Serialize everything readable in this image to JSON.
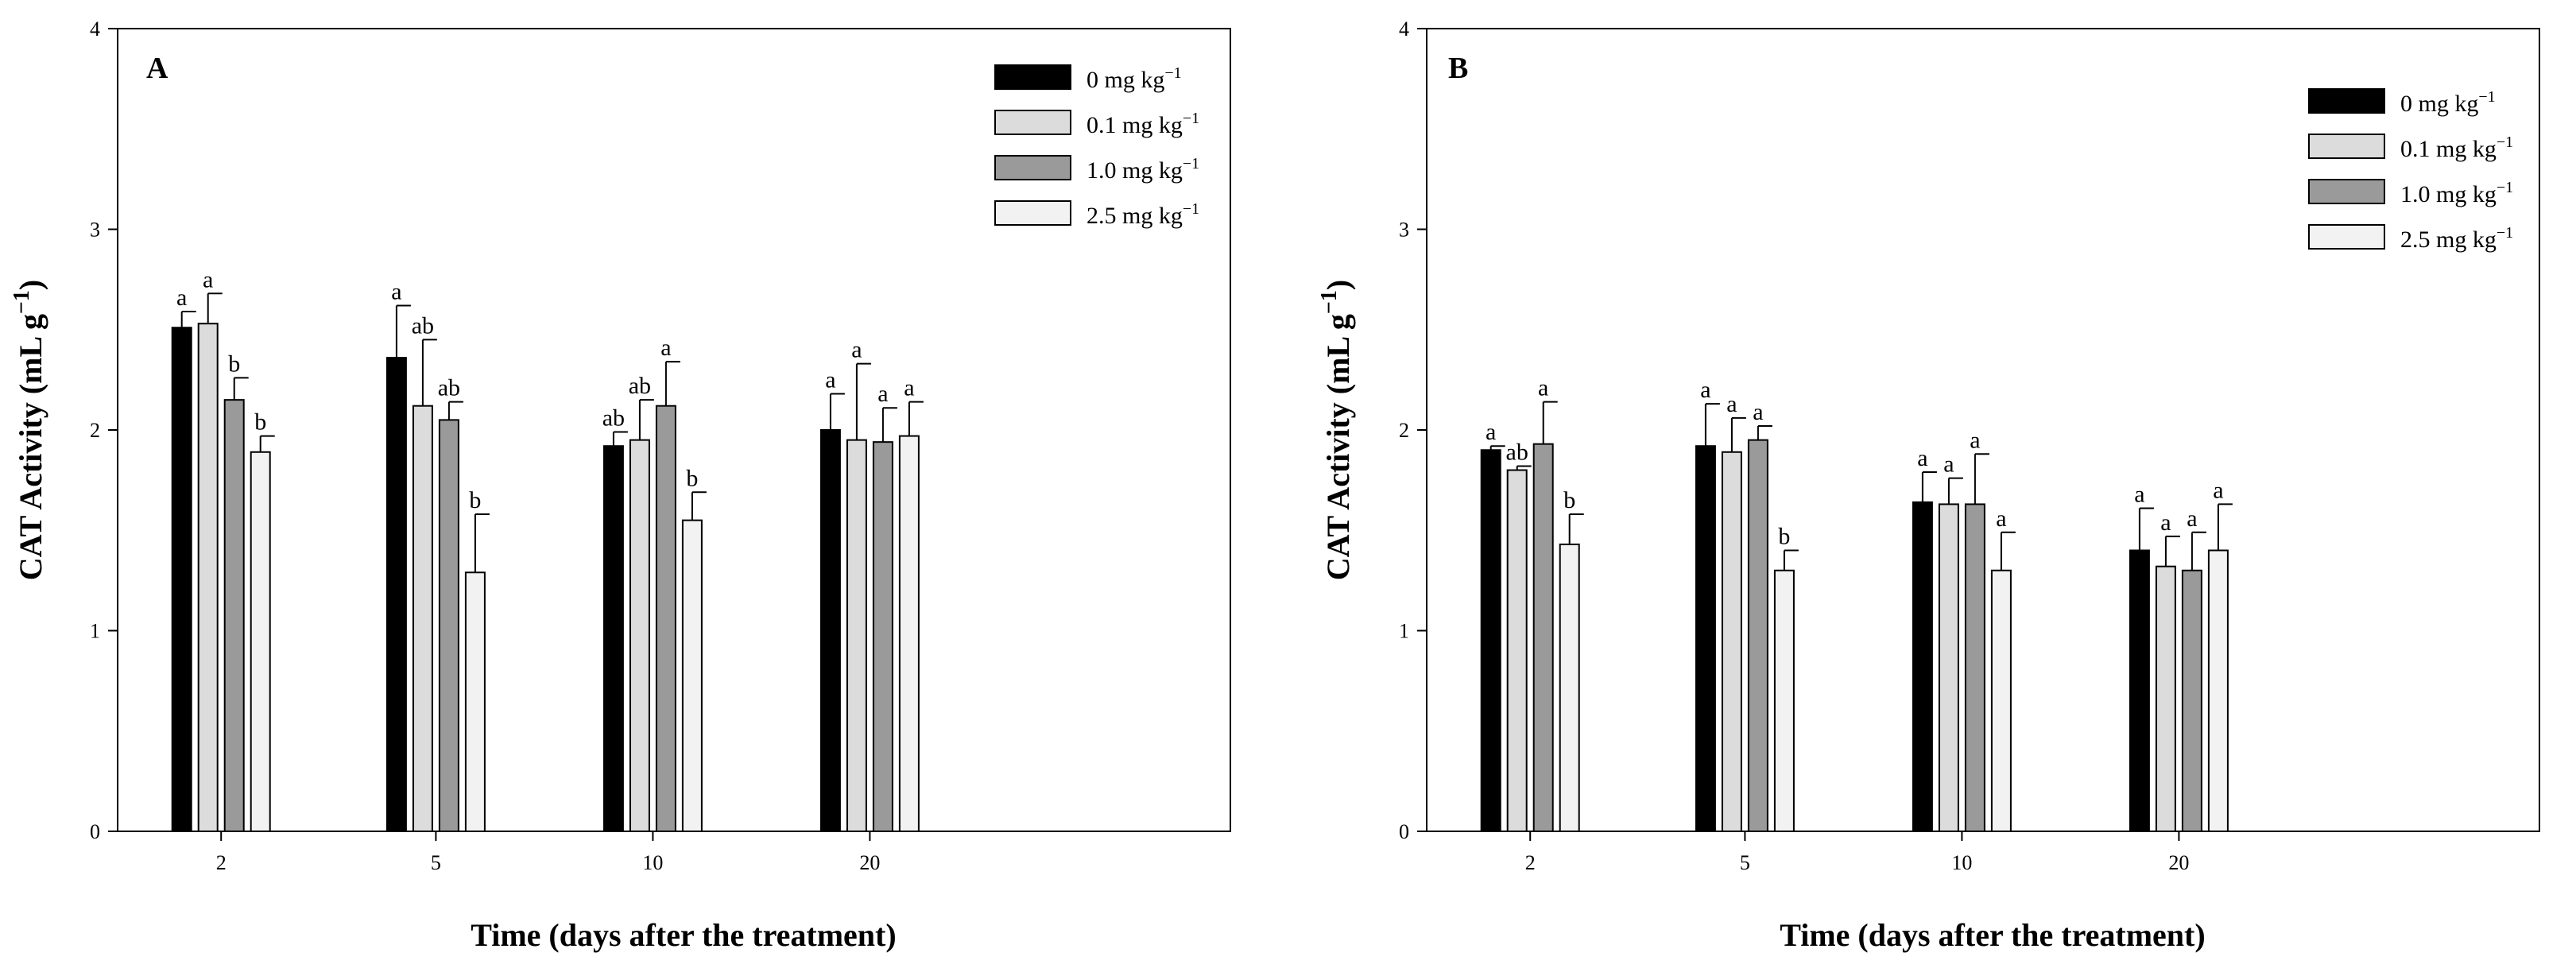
{
  "chart_data": [
    {
      "type": "bar",
      "panel_label": "A",
      "xlabel": "Time (days after the treatment)",
      "ylabel": "CAT Activity (mL g",
      "ylabel_sup": "−1",
      "ylabel_end": ")",
      "ylim": [
        0,
        4
      ],
      "yticks": [
        "0",
        "1",
        "2",
        "3",
        "4"
      ],
      "categories": [
        "2",
        "5",
        "10",
        "20"
      ],
      "legend_position": "top-right",
      "series": [
        {
          "name": "0 mg kg",
          "name_sup": "−1",
          "color": "#000000",
          "values": [
            2.51,
            2.36,
            1.92,
            2.0
          ],
          "errors": [
            0.08,
            0.26,
            0.07,
            0.18
          ],
          "letters": [
            "a",
            "a",
            "ab",
            "a"
          ]
        },
        {
          "name": "0.1 mg kg",
          "name_sup": "−1",
          "color": "#dcdcdc",
          "values": [
            2.53,
            2.12,
            1.95,
            1.95
          ],
          "errors": [
            0.15,
            0.33,
            0.2,
            0.38
          ],
          "letters": [
            "a",
            "ab",
            "ab",
            "a"
          ]
        },
        {
          "name": "1.0 mg kg",
          "name_sup": "−1",
          "color": "#9a9a9a",
          "values": [
            2.15,
            2.05,
            2.12,
            1.94
          ],
          "errors": [
            0.11,
            0.09,
            0.22,
            0.17
          ],
          "letters": [
            "b",
            "ab",
            "a",
            "a"
          ]
        },
        {
          "name": "2.5 mg kg",
          "name_sup": "−1",
          "color": "#f2f2f2",
          "values": [
            1.89,
            1.29,
            1.55,
            1.97
          ],
          "errors": [
            0.08,
            0.29,
            0.14,
            0.17
          ],
          "letters": [
            "b",
            "b",
            "b",
            "a"
          ]
        }
      ]
    },
    {
      "type": "bar",
      "panel_label": "B",
      "xlabel": "Time (days after the treatment)",
      "ylabel": "CAT Activity (mL g",
      "ylabel_sup": "−1",
      "ylabel_end": ")",
      "ylim": [
        0,
        4
      ],
      "yticks": [
        "0",
        "1",
        "2",
        "3",
        "4"
      ],
      "categories": [
        "2",
        "5",
        "10",
        "20"
      ],
      "legend_position": "top-right",
      "series": [
        {
          "name": "0 mg kg",
          "name_sup": "−1",
          "color": "#000000",
          "values": [
            1.9,
            1.92,
            1.64,
            1.4
          ],
          "errors": [
            0.02,
            0.21,
            0.15,
            0.21
          ],
          "letters": [
            "a",
            "a",
            "a",
            "a"
          ]
        },
        {
          "name": "0.1 mg kg",
          "name_sup": "−1",
          "color": "#dcdcdc",
          "values": [
            1.8,
            1.89,
            1.63,
            1.32
          ],
          "errors": [
            0.02,
            0.17,
            0.13,
            0.15
          ],
          "letters": [
            "ab",
            "a",
            "a",
            "a"
          ]
        },
        {
          "name": "1.0 mg kg",
          "name_sup": "−1",
          "color": "#9a9a9a",
          "values": [
            1.93,
            1.95,
            1.63,
            1.3
          ],
          "errors": [
            0.21,
            0.07,
            0.25,
            0.19
          ],
          "letters": [
            "a",
            "a",
            "a",
            "a"
          ]
        },
        {
          "name": "2.5 mg kg",
          "name_sup": "−1",
          "color": "#f2f2f2",
          "values": [
            1.43,
            1.3,
            1.3,
            1.4
          ],
          "errors": [
            0.15,
            0.1,
            0.19,
            0.23
          ],
          "letters": [
            "b",
            "b",
            "a",
            "a"
          ]
        }
      ]
    }
  ]
}
